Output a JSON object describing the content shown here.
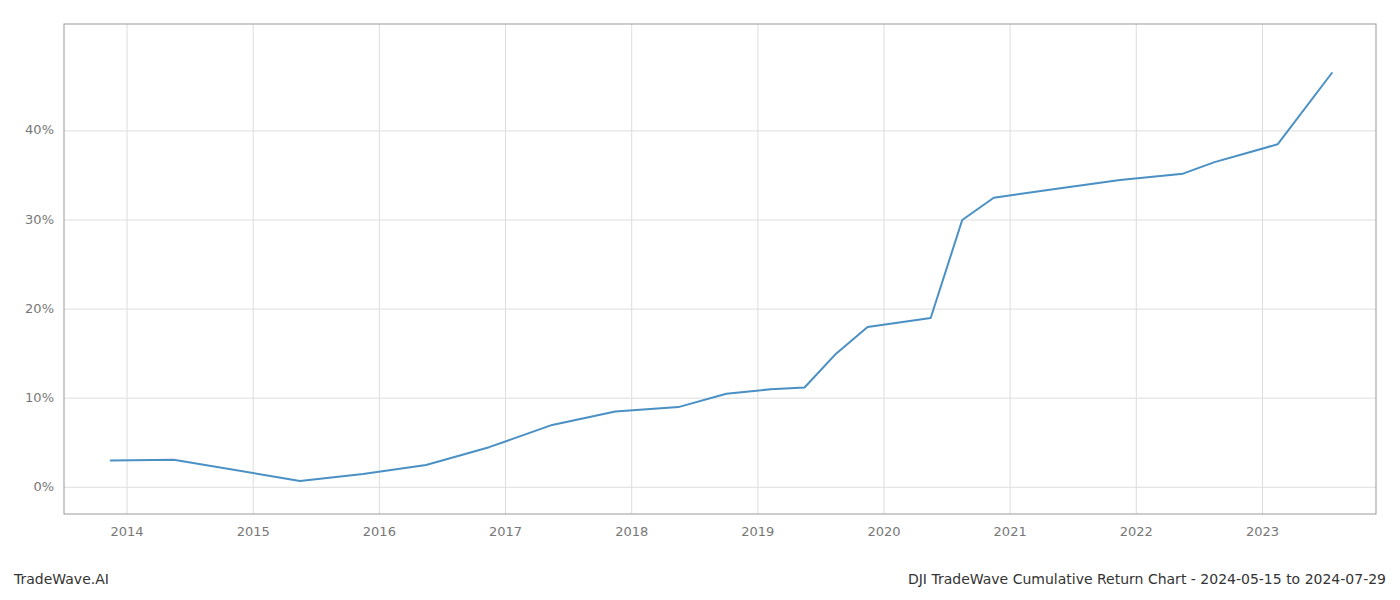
{
  "chart_data": {
    "type": "line",
    "title": "DJI TradeWave Cumulative Return Chart - 2024-05-15 to 2024-07-29",
    "annotations": [
      "TradeWave.AI"
    ],
    "x": [
      2013.87,
      2014.37,
      2015.37,
      2015.87,
      2016.37,
      2016.87,
      2017.37,
      2017.87,
      2018.37,
      2018.75,
      2019.1,
      2019.37,
      2019.62,
      2019.87,
      2020.12,
      2020.37,
      2020.62,
      2020.87,
      2021.37,
      2021.87,
      2022.37,
      2022.62,
      2022.87,
      2023.12,
      2023.55
    ],
    "values": [
      3.0,
      3.1,
      0.7,
      1.5,
      2.5,
      4.5,
      7.0,
      8.5,
      9.0,
      10.5,
      11.0,
      11.2,
      15.0,
      18.0,
      18.5,
      19.0,
      30.0,
      32.5,
      33.5,
      34.5,
      35.2,
      36.5,
      37.5,
      38.5,
      46.5
    ],
    "color": "#4a90c4",
    "xlim": [
      2013.5,
      2023.9
    ],
    "xticks": [
      2014,
      2015,
      2016,
      2017,
      2018,
      2019,
      2020,
      2021,
      2022,
      2023
    ],
    "ylim": [
      -3,
      52
    ],
    "yticks": [
      {
        "value": 0,
        "label": "0%"
      },
      {
        "value": 10,
        "label": "10%"
      },
      {
        "value": 20,
        "label": "20%"
      },
      {
        "value": 30,
        "label": "30%"
      },
      {
        "value": 40,
        "label": "40%"
      }
    ],
    "grid": true
  }
}
